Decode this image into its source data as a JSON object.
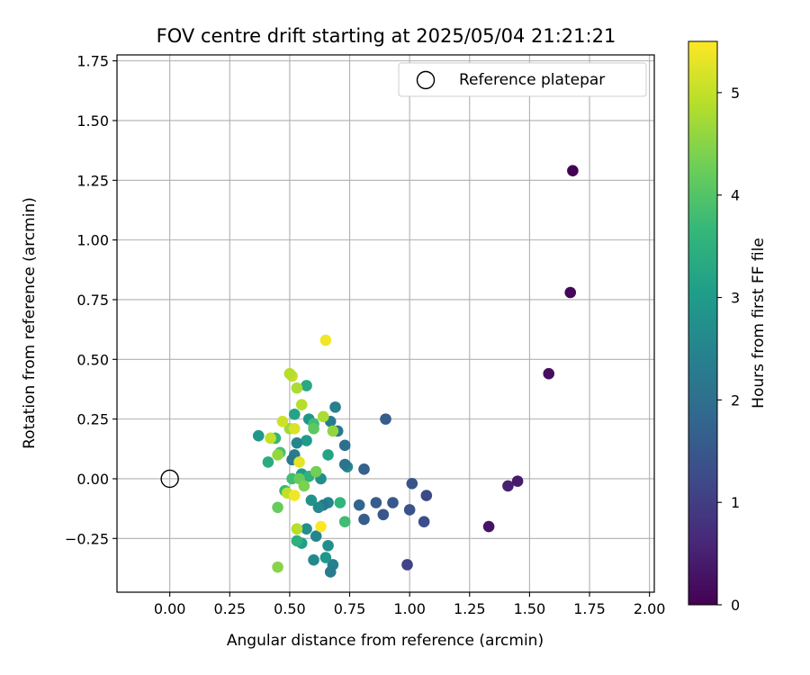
{
  "chart_data": {
    "type": "scatter",
    "title": "FOV centre drift starting at 2025/05/04 21:21:21",
    "xlabel": "Angular distance from reference (arcmin)",
    "ylabel": "Rotation from reference (arcmin)",
    "xlim": [
      -0.22,
      2.02
    ],
    "ylim": [
      -0.475,
      1.775
    ],
    "xticks": [
      "0.00",
      "0.25",
      "0.50",
      "0.75",
      "1.00",
      "1.25",
      "1.50",
      "1.75",
      "2.00"
    ],
    "yticks": [
      "−0.25",
      "0.00",
      "0.25",
      "0.50",
      "0.75",
      "1.00",
      "1.25",
      "1.50",
      "1.75"
    ],
    "grid": true,
    "legend": {
      "label": "Reference platepar",
      "placement": "top-right"
    },
    "colorbar": {
      "label": "Hours from first FF file",
      "ticks": [
        "0",
        "1",
        "2",
        "3",
        "4",
        "5"
      ],
      "range": [
        0,
        5.5
      ],
      "colormap": "viridis"
    },
    "reference_point": {
      "x": 0.0,
      "y": 0.0
    },
    "points": [
      {
        "x": 1.68,
        "y": 1.29,
        "h": 0.0
      },
      {
        "x": 1.67,
        "y": 0.78,
        "h": 0.1
      },
      {
        "x": 1.58,
        "y": 0.44,
        "h": 0.2
      },
      {
        "x": 1.45,
        "y": -0.01,
        "h": 0.4
      },
      {
        "x": 1.41,
        "y": -0.03,
        "h": 0.5
      },
      {
        "x": 1.33,
        "y": -0.2,
        "h": 0.3
      },
      {
        "x": 0.99,
        "y": -0.36,
        "h": 1.1
      },
      {
        "x": 1.07,
        "y": -0.07,
        "h": 1.2
      },
      {
        "x": 1.06,
        "y": -0.18,
        "h": 1.3
      },
      {
        "x": 1.01,
        "y": -0.02,
        "h": 1.4
      },
      {
        "x": 1.0,
        "y": -0.13,
        "h": 1.4
      },
      {
        "x": 0.93,
        "y": -0.1,
        "h": 1.5
      },
      {
        "x": 0.9,
        "y": 0.25,
        "h": 1.6
      },
      {
        "x": 0.89,
        "y": -0.15,
        "h": 1.5
      },
      {
        "x": 0.86,
        "y": -0.1,
        "h": 1.6
      },
      {
        "x": 0.81,
        "y": 0.04,
        "h": 1.7
      },
      {
        "x": 0.81,
        "y": -0.17,
        "h": 1.6
      },
      {
        "x": 0.79,
        "y": -0.11,
        "h": 1.8
      },
      {
        "x": 0.74,
        "y": 0.05,
        "h": 2.6
      },
      {
        "x": 0.73,
        "y": 0.14,
        "h": 2.0
      },
      {
        "x": 0.73,
        "y": 0.06,
        "h": 2.1
      },
      {
        "x": 0.7,
        "y": 0.2,
        "h": 2.2
      },
      {
        "x": 0.69,
        "y": 0.3,
        "h": 2.4
      },
      {
        "x": 0.67,
        "y": 0.24,
        "h": 2.3
      },
      {
        "x": 0.68,
        "y": -0.36,
        "h": 2.4
      },
      {
        "x": 0.67,
        "y": -0.39,
        "h": 2.3
      },
      {
        "x": 0.66,
        "y": -0.28,
        "h": 2.7
      },
      {
        "x": 0.66,
        "y": -0.1,
        "h": 2.5
      },
      {
        "x": 0.65,
        "y": -0.33,
        "h": 2.9
      },
      {
        "x": 0.64,
        "y": -0.11,
        "h": 2.2
      },
      {
        "x": 0.62,
        "y": -0.12,
        "h": 2.6
      },
      {
        "x": 0.63,
        "y": 0.0,
        "h": 2.7
      },
      {
        "x": 0.61,
        "y": -0.24,
        "h": 2.5
      },
      {
        "x": 0.6,
        "y": -0.34,
        "h": 2.6
      },
      {
        "x": 0.59,
        "y": -0.09,
        "h": 2.8
      },
      {
        "x": 0.58,
        "y": 0.25,
        "h": 2.9
      },
      {
        "x": 0.57,
        "y": 0.16,
        "h": 3.0
      },
      {
        "x": 0.57,
        "y": -0.21,
        "h": 2.7
      },
      {
        "x": 0.55,
        "y": -0.27,
        "h": 3.1
      },
      {
        "x": 0.55,
        "y": 0.02,
        "h": 3.0
      },
      {
        "x": 0.53,
        "y": 0.15,
        "h": 2.5
      },
      {
        "x": 0.52,
        "y": 0.1,
        "h": 2.3
      },
      {
        "x": 0.51,
        "y": 0.08,
        "h": 2.2
      },
      {
        "x": 0.52,
        "y": 0.27,
        "h": 3.2
      },
      {
        "x": 0.57,
        "y": 0.39,
        "h": 3.3
      },
      {
        "x": 0.37,
        "y": 0.18,
        "h": 2.9
      },
      {
        "x": 0.41,
        "y": 0.07,
        "h": 3.4
      },
      {
        "x": 0.44,
        "y": 0.17,
        "h": 3.6
      },
      {
        "x": 0.46,
        "y": 0.11,
        "h": 3.9
      },
      {
        "x": 0.48,
        "y": -0.05,
        "h": 3.7
      },
      {
        "x": 0.51,
        "y": 0.0,
        "h": 3.8
      },
      {
        "x": 0.53,
        "y": -0.26,
        "h": 3.5
      },
      {
        "x": 0.58,
        "y": 0.01,
        "h": 3.5
      },
      {
        "x": 0.6,
        "y": 0.23,
        "h": 3.8
      },
      {
        "x": 0.6,
        "y": 0.21,
        "h": 4.1
      },
      {
        "x": 0.61,
        "y": 0.03,
        "h": 4.3
      },
      {
        "x": 0.66,
        "y": 0.1,
        "h": 3.2
      },
      {
        "x": 0.71,
        "y": -0.1,
        "h": 3.6
      },
      {
        "x": 0.73,
        "y": -0.18,
        "h": 3.8
      },
      {
        "x": 0.54,
        "y": 0.0,
        "h": 4.2
      },
      {
        "x": 0.56,
        "y": -0.03,
        "h": 4.4
      },
      {
        "x": 0.45,
        "y": -0.12,
        "h": 4.2
      },
      {
        "x": 0.45,
        "y": 0.1,
        "h": 4.6
      },
      {
        "x": 0.5,
        "y": 0.21,
        "h": 4.7
      },
      {
        "x": 0.53,
        "y": 0.38,
        "h": 4.8
      },
      {
        "x": 0.55,
        "y": 0.31,
        "h": 4.9
      },
      {
        "x": 0.51,
        "y": 0.43,
        "h": 5.0
      },
      {
        "x": 0.5,
        "y": 0.44,
        "h": 4.9
      },
      {
        "x": 0.42,
        "y": 0.17,
        "h": 5.0
      },
      {
        "x": 0.47,
        "y": 0.24,
        "h": 5.1
      },
      {
        "x": 0.52,
        "y": 0.21,
        "h": 5.2
      },
      {
        "x": 0.49,
        "y": -0.06,
        "h": 5.0
      },
      {
        "x": 0.53,
        "y": -0.21,
        "h": 4.9
      },
      {
        "x": 0.54,
        "y": 0.07,
        "h": 5.3
      },
      {
        "x": 0.52,
        "y": -0.07,
        "h": 5.4
      },
      {
        "x": 0.63,
        "y": -0.2,
        "h": 5.5
      },
      {
        "x": 0.64,
        "y": 0.26,
        "h": 4.8
      },
      {
        "x": 0.68,
        "y": 0.2,
        "h": 4.6
      },
      {
        "x": 0.45,
        "y": -0.37,
        "h": 4.5
      },
      {
        "x": 0.65,
        "y": 0.58,
        "h": 5.4
      }
    ]
  }
}
